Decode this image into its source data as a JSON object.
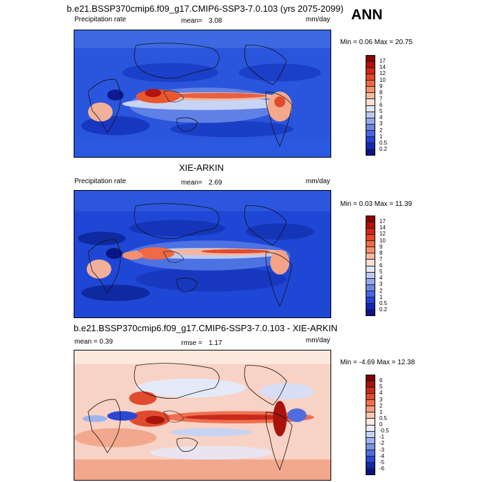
{
  "season": "ANN",
  "panels": [
    {
      "title": "b.e21.BSSP370cmip6.f09_g17.CMIP6-SSP3-7.0.103 (yrs 2075-2099)",
      "left_label": "Precipitation rate",
      "stat_label": "mean=",
      "stat_value": "3.08",
      "units": "mm/day",
      "min_max": "Min =   0.06 Max =  20.75",
      "colorbar": {
        "labels": [
          "17",
          "14",
          "12",
          "10",
          "9",
          "8",
          "7",
          "6",
          "5",
          "4",
          "3",
          "2",
          "1",
          "0.5",
          "0.2"
        ],
        "colors": [
          "#8b0000",
          "#b3120e",
          "#d2261a",
          "#e4452b",
          "#ef6a45",
          "#f5906e",
          "#f8b89f",
          "#fbe0d4",
          "#dfe6f6",
          "#bcc9f1",
          "#93a9ec",
          "#6d86e6",
          "#4a63e3",
          "#2740d6",
          "#1526b3",
          "#0a1585"
        ]
      }
    },
    {
      "title": "XIE-ARKIN",
      "left_label": "Precipitation rate",
      "stat_label": "mean=",
      "stat_value": "2.69",
      "units": "mm/day",
      "min_max": "Min =   0.03 Max =  11.39",
      "colorbar": {
        "labels": [
          "17",
          "14",
          "12",
          "10",
          "9",
          "8",
          "7",
          "6",
          "5",
          "4",
          "3",
          "2",
          "1",
          "0.5",
          "0.2"
        ],
        "colors": [
          "#8b0000",
          "#b3120e",
          "#d2261a",
          "#e4452b",
          "#ef6a45",
          "#f5906e",
          "#f8b89f",
          "#fbe0d4",
          "#dfe6f6",
          "#bcc9f1",
          "#93a9ec",
          "#6d86e6",
          "#4a63e3",
          "#2740d6",
          "#1526b3",
          "#0a1585"
        ]
      }
    },
    {
      "title": "b.e21.BSSP370cmip6.f09_g17.CMIP6-SSP3-7.0.103 - XIE-ARKIN",
      "left_label": "mean =   0.39",
      "stat_label": "rmse =",
      "stat_value": "1.17",
      "units": "mm/day",
      "min_max": "Min =  -4.69 Max =  12.38",
      "colorbar": {
        "labels": [
          "6",
          "5",
          "4",
          "3",
          "2",
          "1",
          "0.5",
          "0",
          "-0.5",
          "-1",
          "-2",
          "-3",
          "-4",
          "-5",
          "-6"
        ],
        "colors": [
          "#7a0000",
          "#a8140c",
          "#c92a1a",
          "#e04a2e",
          "#ee7050",
          "#f59a7c",
          "#fbc7b3",
          "#fde9e0",
          "#e6ecf8",
          "#c6d3f3",
          "#9fb4ee",
          "#7792e6",
          "#4f6de0",
          "#2b48d4",
          "#1428a8",
          "#0a1580"
        ]
      }
    }
  ]
}
